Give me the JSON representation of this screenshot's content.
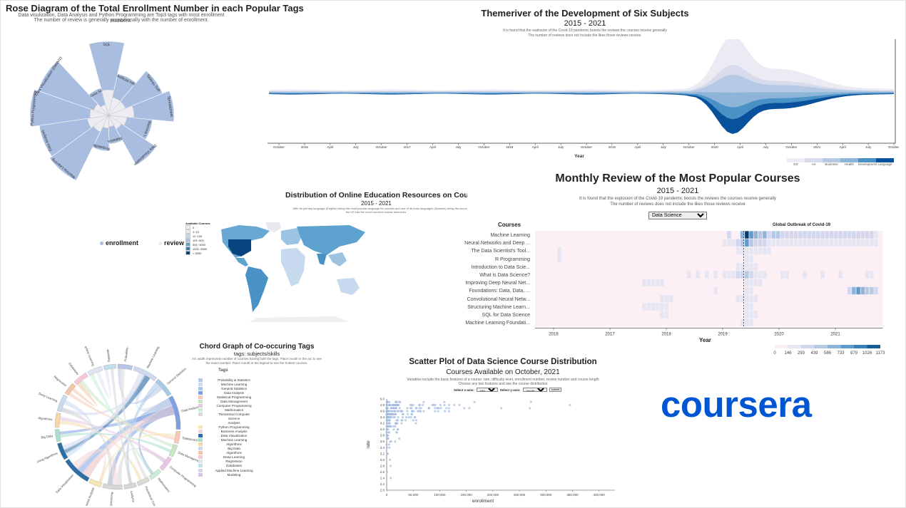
{
  "rose": {
    "title": "Rose Diagram of the Total Enrollment Number in each Popular Tags",
    "subtitle_1": "Data visulization, Data Analysis and Python Programming are Top3 tags with most enrollment numbers.",
    "subtitle_2": "The number of review is generally proportionally with the number of enrollment.",
    "legend": [
      {
        "label": "enrollment",
        "color": "#a9bde0"
      },
      {
        "label": "review",
        "color": "#ececf2"
      }
    ],
    "tags": [
      "SQL",
      "Artificial Inte",
      "Tableau Soft",
      "Spreadsheet",
      "Machine L",
      "Data Visualization",
      "Statistics",
      "Probability",
      "Machine Learning",
      "Data Analysis",
      "Python Programming",
      "Data Visualization (DataViz)",
      "Data Sc"
    ]
  },
  "theme_river": {
    "title": "Themeriver of the Development of Six Subjects",
    "years": "2015 - 2021",
    "note_1": "It is found that the explosion of the Covid-19 pandemic boosts the reviews the courses receive generally",
    "note_2": "The number of reviews does not include the likes those reviews receive.",
    "xlabel": "Year",
    "ticks": [
      "October",
      "2016",
      "April",
      "July",
      "October",
      "2017",
      "April",
      "July",
      "October",
      "2018",
      "April",
      "July",
      "October",
      "2019",
      "April",
      "July",
      "October",
      "2020",
      "April",
      "July",
      "October",
      "2021",
      "April",
      "July",
      "October"
    ],
    "legend": [
      {
        "label": "DS",
        "color": "#ecebf4"
      },
      {
        "label": "Art",
        "color": "#d7dbec"
      },
      {
        "label": "Business",
        "color": "#b5c8e4"
      },
      {
        "label": "Health",
        "color": "#8db4d9"
      },
      {
        "label": "Development",
        "color": "#4a92c6"
      },
      {
        "label": "Language",
        "color": "#08519c"
      }
    ]
  },
  "map": {
    "title": "Distribution of Online Education Resources on Cours",
    "years": "2015 - 2021",
    "note_1": "With its primary language (English) being the most popular language for courses and one of its main languages (Spanish) being the secon",
    "note_2": "the US has the most coursera course resources.",
    "legend_title": "Available Courses",
    "legend": [
      {
        "label": "0",
        "color": "#f0f0f0"
      },
      {
        "label": "1~10",
        "color": "#e3e9f3"
      },
      {
        "label": "11~100",
        "color": "#c6d9ee"
      },
      {
        "label": "101~500",
        "color": "#9dc3e2"
      },
      {
        "label": "501~1000",
        "color": "#5ea2cf"
      },
      {
        "label": "1001~3000",
        "color": "#2e7db8"
      },
      {
        "label": "> 3000",
        "color": "#08447e"
      }
    ]
  },
  "heatmap": {
    "title": "Monthly Review of the Most Popular Courses",
    "years": "2015 - 2021",
    "note_1": "It is found that the explosion of the Covid-19 pandemic boosts the reviews the courses receive generally",
    "note_2": "The number of reviews does not include the likes those reviews receive",
    "dropdown": "Data Science",
    "courses_label": "Courses",
    "annotation": "Global Outbreak of Covid-19",
    "xlabel": "Year",
    "year_ticks": [
      "2016",
      "2017",
      "2018",
      "2019",
      "2020",
      "2021"
    ],
    "courses": [
      "Machine Learning",
      "Neural Networks and Deep ...",
      "The Data Scientist's Tool...",
      "R Programming",
      "Introduction to Data Scie...",
      "What is Data Science?",
      "Improving Deep Neural Net...",
      "Foundations: Data, Data, ...",
      "Convolutional Neural Netw...",
      "Structuring Machine Learn...",
      "SQL for Data Science",
      "Machine Learning Foundati..."
    ],
    "scale_ticks": [
      "0",
      "146",
      "293",
      "439",
      "586",
      "733",
      "879",
      "1026",
      "1173"
    ]
  },
  "chord": {
    "title": "Chord Graph of Co-occuring Tags",
    "subtitle": "tags: subjects/skills",
    "note_1": "Arc width represents number of courses having both the tags. Place mouth in the arc to see",
    "note_2": "the exact number. Place mouth in the legend to see the hottest courses.",
    "legend_title": "Tags",
    "tags": [
      {
        "label": "Probability & Statistics",
        "color": "#b9c5e8"
      },
      {
        "label": "Machine Learning",
        "color": "#d0d8ef"
      },
      {
        "label": "General Statistics",
        "color": "#a8c8e8"
      },
      {
        "label": "Data Analysis",
        "color": "#7fa0e0"
      },
      {
        "label": "Statistical Programming",
        "color": "#f7c9b5"
      },
      {
        "label": "Data Management",
        "color": "#c8e6c1"
      },
      {
        "label": "Computer Programming",
        "color": "#e8c6e3"
      },
      {
        "label": "Mathematics",
        "color": "#c9ecd8"
      },
      {
        "label": "Theoretical Computer",
        "color": "#d9d9d9"
      },
      {
        "label": "Science",
        "color": "#ffffff"
      },
      {
        "label": "Analysis",
        "color": "#ffffff"
      },
      {
        "label": "Python Programming",
        "color": "#f5e6b5"
      },
      {
        "label": "Business Analysis",
        "color": "#f3d4d4"
      },
      {
        "label": "Data Visualization",
        "color": "#2d6ea5"
      },
      {
        "label": "Machine Learning",
        "color": "#aadfcc"
      },
      {
        "label": "Algorithms",
        "color": "#f5d8a8"
      },
      {
        "label": "Big Data",
        "color": "#c9d9f0"
      },
      {
        "label": "Algorithms",
        "color": "#f2c7a9"
      },
      {
        "label": "Deep Learning",
        "color": "#f5c9d8"
      },
      {
        "label": "Regression",
        "color": "#dfe3f2"
      },
      {
        "label": "Databases",
        "color": "#bfe0ea"
      },
      {
        "label": "Applied Machine Learning",
        "color": "#e1d2ec"
      },
      {
        "label": "Modeling",
        "color": "#d8c4e6"
      }
    ],
    "arc_labels": [
      "Probability & Statistics",
      "Machine Learning",
      "General Statistics",
      "Data Analysis",
      "Statistical Programming",
      "Data Management",
      "Computer Programming",
      "Mathematics",
      "Theoretical Computer Science",
      "Analysis",
      "Python Programming",
      "Business Analysis",
      "Data Visualization",
      "Machine Learning Algorithms",
      "Big Data",
      "Algorithms",
      "Deep Learning",
      "Regression",
      "Databases",
      "Applied Machine Learning",
      "Modeling"
    ]
  },
  "scatter": {
    "title": "Scatter Plot of Data Science Course Distribution",
    "subtitle": "Courses Available on October, 2021",
    "note_1": "Variables include the basic features of a course: rate, difficulty level, enrollment number, review number and course length",
    "note_2": "Choose any two features and see the course distribution",
    "x_select_label": "Select x-axis:",
    "x_select_value": "rate",
    "y_select_label": "Select y-axis:",
    "y_select_value": "enrollment",
    "submit": "submit",
    "chart_data": {
      "type": "scatter",
      "xlabel": "enrollment",
      "ylabel": "rate",
      "xlim": [
        0,
        430000
      ],
      "ylim": [
        2.0,
        5.0
      ],
      "x_ticks": [
        "0",
        "50,000",
        "100,000",
        "150,000",
        "200,000",
        "250,000",
        "300,000",
        "350,000",
        "400,000"
      ],
      "y_ticks": [
        "2.0",
        "2.2",
        "2.4",
        "2.6",
        "2.8",
        "3.0",
        "3.2",
        "3.4",
        "3.6",
        "3.8",
        "4.0",
        "4.2",
        "4.4",
        "4.6",
        "4.8",
        "5.0"
      ]
    }
  },
  "logo": {
    "text": "coursera",
    "color": "#0056d2"
  }
}
